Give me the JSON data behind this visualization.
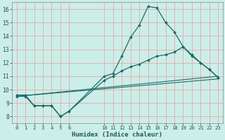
{
  "xlabel": "Humidex (Indice chaleur)",
  "bg_color": "#cceee8",
  "line_color": "#1a6b6b",
  "grid_color": "#e8a8a8",
  "xlim": [
    -0.5,
    23.5
  ],
  "ylim": [
    7.5,
    16.5
  ],
  "yticks": [
    8,
    9,
    10,
    11,
    12,
    13,
    14,
    15,
    16
  ],
  "xticks": [
    0,
    1,
    2,
    3,
    4,
    5,
    6,
    10,
    11,
    12,
    13,
    14,
    15,
    16,
    17,
    18,
    19,
    20,
    21,
    22,
    23
  ],
  "line1_x": [
    0,
    1,
    2,
    3,
    4,
    5,
    6,
    10,
    11,
    12,
    13,
    14,
    15,
    16,
    17,
    18,
    19,
    20,
    21,
    22,
    23
  ],
  "line1_y": [
    9.6,
    9.6,
    8.8,
    8.8,
    8.8,
    8.0,
    8.4,
    11.0,
    11.2,
    12.5,
    13.9,
    14.8,
    16.2,
    16.1,
    15.0,
    14.3,
    13.2,
    12.5,
    12.0,
    11.5,
    10.9
  ],
  "line2_x": [
    0,
    1,
    2,
    3,
    4,
    5,
    6,
    10,
    11,
    12,
    13,
    14,
    15,
    16,
    17,
    18,
    19,
    20,
    21,
    22,
    23
  ],
  "line2_y": [
    9.5,
    9.5,
    8.8,
    8.8,
    8.8,
    8.0,
    8.4,
    10.7,
    11.0,
    11.4,
    11.7,
    11.9,
    12.2,
    12.5,
    12.6,
    12.8,
    13.2,
    12.6,
    12.0,
    11.5,
    10.9
  ],
  "line3_x": [
    0,
    23
  ],
  "line3_y": [
    9.5,
    11.0
  ],
  "line4_x": [
    0,
    23
  ],
  "line4_y": [
    9.5,
    10.8
  ]
}
